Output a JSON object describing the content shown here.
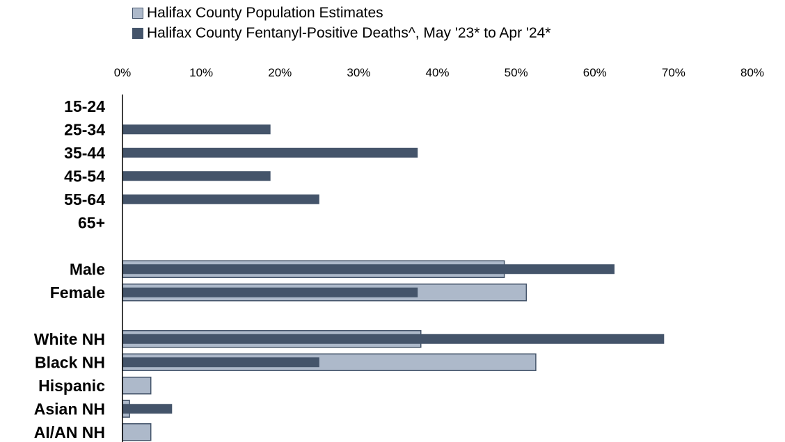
{
  "colors": {
    "population": "#ADB9CA",
    "population_border": "#44546A",
    "deaths": "#44546A",
    "axis": "#000000"
  },
  "chart_data": {
    "type": "bar",
    "orientation": "horizontal",
    "title": "",
    "xlabel": "",
    "ylabel": "",
    "xlim": [
      0,
      80
    ],
    "xticks": [
      "0%",
      "10%",
      "20%",
      "30%",
      "40%",
      "50%",
      "60%",
      "70%",
      "80%"
    ],
    "tick_position": "top",
    "legend_position": "top",
    "grid": false,
    "categories": [
      "15-24",
      "25-34",
      "35-44",
      "45-54",
      "55-64",
      "65+",
      "",
      "Male",
      "Female",
      "",
      "White NH",
      "Black NH",
      "Hispanic",
      "Asian NH",
      "AI/AN NH"
    ],
    "series": [
      {
        "name": "Halifax County Population Estimates",
        "values": [
          null,
          null,
          null,
          null,
          null,
          null,
          null,
          48.5,
          51.3,
          null,
          37.9,
          52.5,
          3.6,
          0.9,
          3.6
        ]
      },
      {
        "name": "Halifax County Fentanyl-Positive Deaths^, May '23* to Apr '24*",
        "values": [
          null,
          18.8,
          37.5,
          18.8,
          25.0,
          null,
          null,
          62.5,
          37.5,
          null,
          68.8,
          25.0,
          null,
          6.3,
          null
        ]
      }
    ]
  }
}
